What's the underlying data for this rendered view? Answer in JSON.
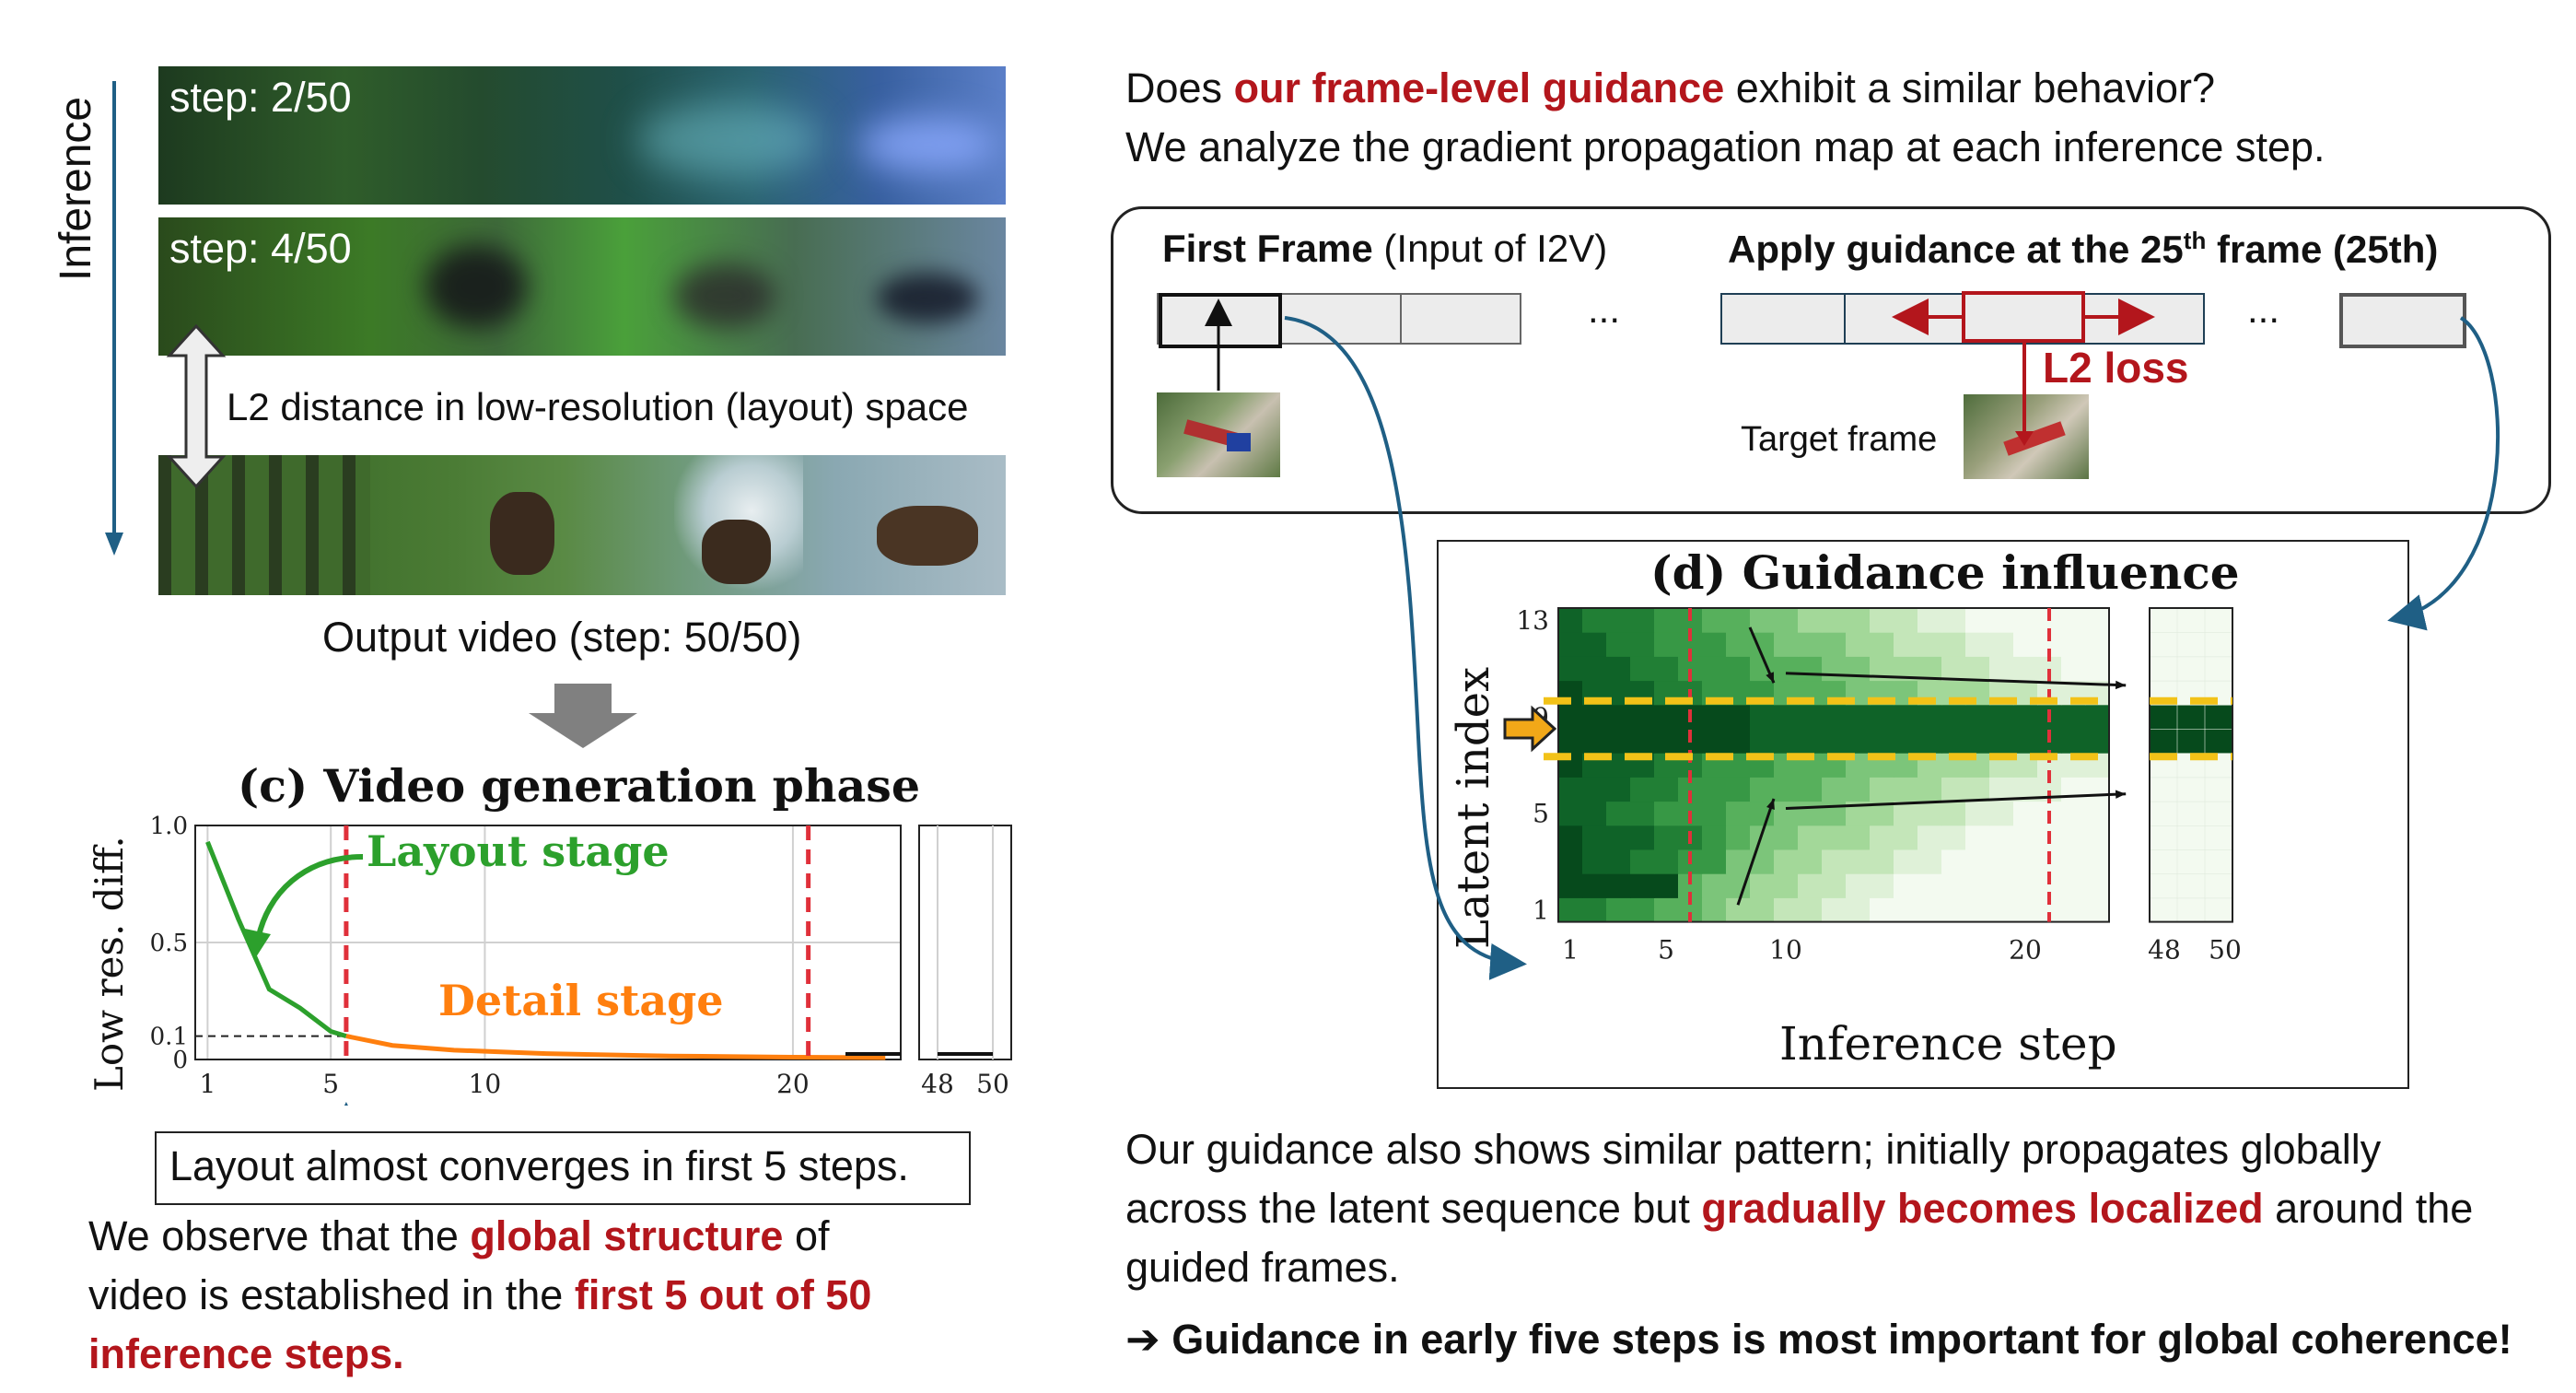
{
  "left": {
    "inference_label": "Inference",
    "step_labels": [
      "step: 2/50",
      "step: 4/50"
    ],
    "l2_text": "L2 distance in low-resolution (layout) space",
    "output_label": "Output video (step: 50/50)",
    "chart_title": "(c) Video generation phase",
    "layout_stage": "Layout stage",
    "detail_stage": "Detail stage",
    "converge_note": "Layout almost converges in first 5 steps.",
    "obs_1": "We observe that the ",
    "obs_red1": "global structure",
    "obs_2": " of",
    "obs_3": "video is established in the ",
    "obs_red2": "first 5 out of 50",
    "obs_red3": "inference steps."
  },
  "right": {
    "q_1": "Does ",
    "q_red": "our frame-level guidance",
    "q_2": " exhibit a similar behavior?",
    "q_line2": "We analyze the gradient propagation map at each inference step.",
    "first_frame_bold": "First Frame",
    "first_frame_rest": " (Input of I2V)",
    "apply_text": "Apply guidance at the 25",
    "apply_sup": "th",
    "apply_end": " frame (25th)",
    "ellipsis": "...",
    "l2_loss": "L2 loss",
    "target_frame": "Target frame",
    "heatmap_title": "(d) Guidance influence",
    "ylabel": "Latent index",
    "xlabel": "Inference step",
    "concl_1": "Our guidance also shows similar pattern; initially propagates globally",
    "concl_2a": "across the latent sequence but ",
    "concl_red": "gradually becomes localized",
    "concl_2b": " around the",
    "concl_3": "guided frames.",
    "final_arrow": "➔",
    "final": "Guidance in early five steps is most important for global coherence!"
  },
  "colors": {
    "accent_red": "#b3161c",
    "green": "#2ca02c",
    "orange": "#ff7f0e",
    "arrow_blue": "#1f5f85",
    "guide_yellow": "#f2c218"
  },
  "chart_data": [
    {
      "type": "line",
      "title": "(c) Video generation phase",
      "xlabel": "",
      "ylabel": "Low res. diff.",
      "xticks": [
        1,
        5,
        10,
        20
      ],
      "xticks_right": [
        48,
        50
      ],
      "yticks": [
        "1.0",
        "0.5",
        "0.1",
        "0"
      ],
      "ylim": [
        0,
        1.0
      ],
      "grid": true,
      "series": [
        {
          "name": "Layout stage",
          "color": "#2ca02c",
          "x": [
            1,
            2,
            3,
            4,
            5,
            5.5
          ],
          "y": [
            0.93,
            0.6,
            0.3,
            0.22,
            0.12,
            0.1
          ]
        },
        {
          "name": "Detail stage",
          "color": "#ff7f0e",
          "x": [
            5.5,
            7,
            9,
            12,
            16,
            20,
            23
          ],
          "y": [
            0.1,
            0.06,
            0.04,
            0.025,
            0.015,
            0.01,
            0.008
          ]
        }
      ],
      "vlines": [
        5.5,
        20.5
      ],
      "hline": 0.1
    },
    {
      "type": "heatmap",
      "title": "(d) Guidance influence",
      "xlabel": "Inference step",
      "ylabel": "Latent index",
      "xticks": [
        1,
        5,
        10,
        20
      ],
      "xticks_right": [
        48,
        50
      ],
      "yticks": [
        1,
        5,
        9,
        13
      ],
      "vlines": [
        5.5,
        20.5
      ],
      "guided_band_rows": [
        8,
        9
      ],
      "cols": 23,
      "rows": 13,
      "right_cols": 3
    }
  ]
}
